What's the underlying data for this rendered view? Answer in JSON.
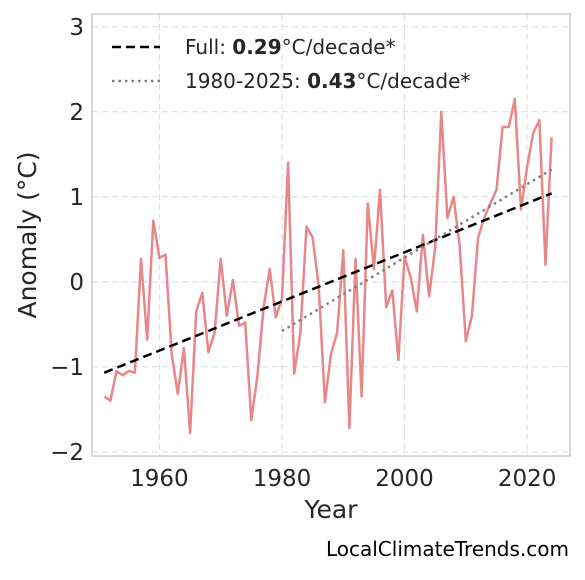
{
  "chart_data": {
    "type": "line",
    "xlabel": "Year",
    "ylabel": "Anomaly (°C)",
    "xlim": [
      1949,
      2027
    ],
    "ylim": [
      -2.05,
      3.15
    ],
    "xticks": [
      1960,
      1980,
      2000,
      2020
    ],
    "yticks": [
      -2,
      -1,
      0,
      1,
      2,
      3
    ],
    "ytick_labels": [
      "−2",
      "−1",
      "0",
      "1",
      "2",
      "3"
    ],
    "grid": true,
    "legend_position": "top-left",
    "series": [
      {
        "type": "line",
        "color": "#e8878a",
        "x": [
          1951,
          1952,
          1953,
          1954,
          1955,
          1956,
          1957,
          1958,
          1959,
          1960,
          1961,
          1962,
          1963,
          1964,
          1965,
          1966,
          1967,
          1968,
          1969,
          1970,
          1971,
          1972,
          1973,
          1974,
          1975,
          1976,
          1977,
          1978,
          1979,
          1980,
          1981,
          1982,
          1983,
          1984,
          1985,
          1986,
          1987,
          1988,
          1989,
          1990,
          1991,
          1992,
          1993,
          1994,
          1995,
          1996,
          1997,
          1998,
          1999,
          2000,
          2001,
          2002,
          2003,
          2004,
          2005,
          2006,
          2007,
          2008,
          2009,
          2010,
          2011,
          2012,
          2013,
          2014,
          2015,
          2016,
          2017,
          2018,
          2019,
          2020,
          2021,
          2022,
          2023,
          2024
        ],
        "y": [
          -1.35,
          -1.4,
          -1.05,
          -1.1,
          -1.05,
          -1.07,
          0.27,
          -0.68,
          0.72,
          0.28,
          0.32,
          -0.85,
          -1.32,
          -0.78,
          -1.78,
          -0.35,
          -0.13,
          -0.83,
          -0.6,
          0.27,
          -0.4,
          0.02,
          -0.52,
          -0.48,
          -1.63,
          -1.1,
          -0.3,
          0.15,
          -0.42,
          -0.2,
          1.4,
          -1.08,
          -0.6,
          0.65,
          0.52,
          -0.05,
          -1.42,
          -0.85,
          -0.6,
          0.37,
          -1.72,
          0.27,
          -1.35,
          0.92,
          0.15,
          1.08,
          -0.3,
          -0.1,
          -0.92,
          0.3,
          0.05,
          -0.35,
          0.55,
          -0.17,
          0.4,
          2.0,
          0.75,
          1.0,
          0.42,
          -0.7,
          -0.4,
          0.52,
          0.75,
          0.92,
          1.08,
          1.82,
          1.82,
          2.15,
          0.85,
          1.35,
          1.75,
          1.9,
          0.2,
          1.7
        ]
      },
      {
        "type": "trend",
        "color": "#000000",
        "style": "dashed",
        "x": [
          1951,
          2024
        ],
        "y": [
          -1.07,
          1.04
        ],
        "legend_prefix": "Full: ",
        "legend_value": "0.29",
        "legend_suffix": "°C/decade*"
      },
      {
        "type": "trend",
        "color": "#808080",
        "style": "dotted",
        "x": [
          1980,
          2024
        ],
        "y": [
          -0.58,
          1.32
        ],
        "legend_prefix": "1980-2025: ",
        "legend_value": "0.43",
        "legend_suffix": "°C/decade*"
      }
    ]
  },
  "footer": {
    "text": "LocalClimateTrends.com"
  }
}
